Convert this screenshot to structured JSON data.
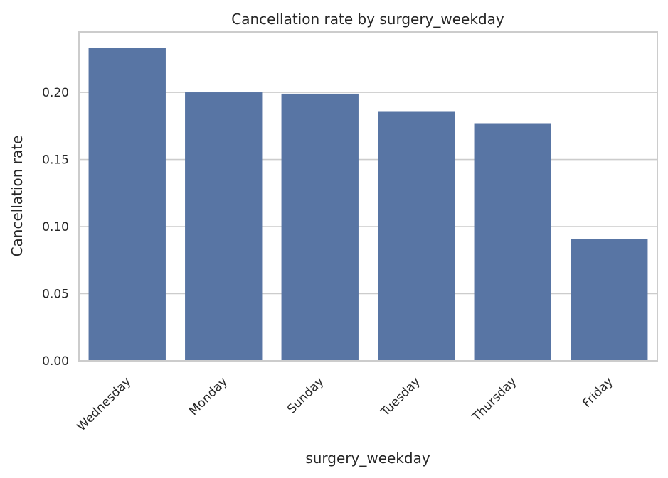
{
  "chart_data": {
    "type": "bar",
    "title": "Cancellation rate by surgery_weekday",
    "xlabel": "surgery_weekday",
    "ylabel": "Cancellation rate",
    "categories": [
      "Wednesday",
      "Monday",
      "Sunday",
      "Tuesday",
      "Thursday",
      "Friday"
    ],
    "values": [
      0.233,
      0.2,
      0.199,
      0.186,
      0.177,
      0.091
    ],
    "yticks": [
      "0.00",
      "0.05",
      "0.10",
      "0.15",
      "0.20"
    ],
    "ylim": [
      0,
      0.245
    ],
    "grid": "horizontal",
    "bar_color": "#5875a4",
    "grid_color": "#cccccc",
    "text_color": "#262626"
  }
}
